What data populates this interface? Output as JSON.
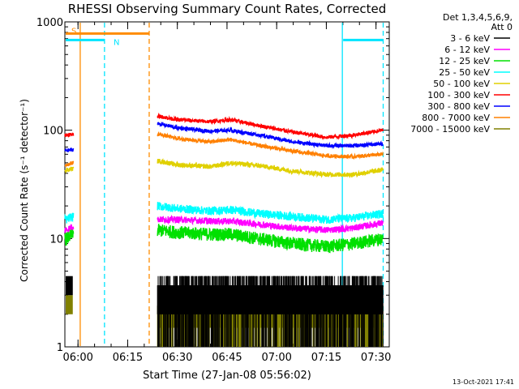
{
  "chart_data": {
    "type": "line",
    "title": "RHESSI Observing Summary Count Rates, Corrected",
    "xlabel": "Start Time (27-Jan-08 05:56:02)",
    "ylabel": "Corrected Count Rate (s⁻¹ detector⁻¹)",
    "ylog": true,
    "xlim": [
      "05:56:02",
      "07:34:00"
    ],
    "ylim": [
      1,
      1000
    ],
    "x_ticks": [
      "06:00",
      "06:15",
      "06:30",
      "06:45",
      "07:00",
      "07:15",
      "07:30"
    ],
    "y_ticks": [
      "1",
      "10",
      "100",
      "1000"
    ],
    "legend_header": [
      "Det 1,3,4,5,6,9,",
      "Att 0"
    ],
    "legend_position": "right",
    "timestamp": "13-Oct-2021 17:41",
    "flag_labels": [
      "S",
      "N"
    ],
    "segments": [
      {
        "from": "05:56:02",
        "to": "05:58:40"
      },
      {
        "from": "06:24:00",
        "to": "07:32:10"
      }
    ],
    "event_lines": [
      {
        "time": "06:00:40",
        "color": "#ff8c00",
        "style": "solid"
      },
      {
        "time": "06:08:00",
        "color": "#00e5ff",
        "style": "dashed"
      },
      {
        "time": "06:21:30",
        "color": "#ff8c00",
        "style": "dashed"
      },
      {
        "time": "07:19:50",
        "color": "#00e5ff",
        "style": "solid"
      },
      {
        "time": "07:32:10",
        "color": "#00e5ff",
        "style": "dashed"
      }
    ],
    "flag_bars": [
      {
        "label": "S",
        "from": "05:56:02",
        "to": "06:21:30",
        "level": 780,
        "color": "#ff8c00"
      },
      {
        "label": "N",
        "from": "05:56:02",
        "to": "06:08:00",
        "level": 680,
        "color": "#00e5ff"
      },
      {
        "label": "",
        "from": "07:19:50",
        "to": "07:32:10",
        "level": 680,
        "color": "#00e5ff"
      }
    ],
    "x": [
      "05:56:30",
      "05:58:20",
      "06:24:20",
      "06:30:00",
      "06:40:00",
      "06:46:00",
      "06:55:00",
      "07:05:00",
      "07:15:00",
      "07:23:00",
      "07:32:00"
    ],
    "series": [
      {
        "name": "3 - 6 keV",
        "color": "#000000",
        "values": [
          null,
          null,
          3.0,
          3.0,
          3.0,
          3.0,
          3.0,
          3.0,
          3.0,
          3.0,
          3.0
        ]
      },
      {
        "name": "6 - 12 keV",
        "color": "#ff00ff",
        "values": [
          12,
          13,
          15,
          15,
          14.5,
          14.5,
          13.5,
          12.5,
          12,
          12.5,
          14
        ]
      },
      {
        "name": "12 - 25 keV",
        "color": "#00e000",
        "values": [
          10,
          11,
          12,
          11.5,
          11,
          11,
          10,
          9,
          8.5,
          9,
          10
        ]
      },
      {
        "name": "25 - 50 keV",
        "color": "#00ffff",
        "values": [
          15,
          16,
          20,
          19,
          18,
          18.5,
          17,
          16,
          15,
          15.5,
          17
        ]
      },
      {
        "name": "50 - 100 keV",
        "color": "#e0d000",
        "values": [
          43,
          44,
          52,
          48,
          46,
          50,
          47,
          42,
          39,
          39,
          43
        ]
      },
      {
        "name": "100 - 300 keV",
        "color": "#ff0000",
        "values": [
          90,
          92,
          135,
          125,
          120,
          125,
          110,
          96,
          86,
          90,
          100
        ]
      },
      {
        "name": "300 - 800 keV",
        "color": "#0000ff",
        "values": [
          65,
          66,
          115,
          105,
          98,
          100,
          90,
          78,
          72,
          72,
          75
        ]
      },
      {
        "name": "800 - 7000 keV",
        "color": "#ff8000",
        "values": [
          48,
          50,
          92,
          84,
          78,
          82,
          72,
          64,
          58,
          57,
          60
        ]
      },
      {
        "name": "7000 - 15000 keV",
        "color": "#808000",
        "values": [
          null,
          null,
          2.0,
          2.0,
          2.0,
          2.0,
          2.0,
          2.0,
          2.0,
          2.0,
          2.0
        ]
      }
    ]
  }
}
